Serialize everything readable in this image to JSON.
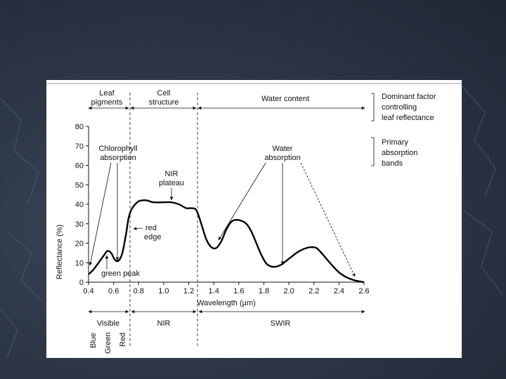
{
  "chart_data": {
    "type": "line",
    "xlabel": "Wavelength (µm)",
    "ylabel": "Reflectance (%)",
    "xlim": [
      0.4,
      2.6
    ],
    "ylim": [
      0,
      80
    ],
    "xticks": [
      "0.4",
      "0.6",
      "0.8",
      "1.0",
      "1.2",
      "1.4",
      "1.6",
      "1.8",
      "2.0",
      "2.2",
      "2.4",
      "2.6"
    ],
    "yticks": [
      "0",
      "10",
      "20",
      "30",
      "40",
      "50",
      "60",
      "70",
      "80"
    ],
    "grid": false,
    "series": [
      {
        "x": [
          0.4,
          0.44,
          0.48,
          0.52,
          0.55,
          0.58,
          0.61,
          0.64,
          0.67,
          0.7,
          0.72,
          0.74,
          0.76,
          0.8,
          0.86,
          0.92,
          1.0,
          1.06,
          1.12,
          1.18,
          1.22,
          1.26,
          1.3,
          1.34,
          1.38,
          1.42,
          1.46,
          1.5,
          1.54,
          1.58,
          1.62,
          1.66,
          1.7,
          1.74,
          1.78,
          1.82,
          1.86,
          1.9,
          1.94,
          1.98,
          2.02,
          2.06,
          2.1,
          2.14,
          2.18,
          2.22,
          2.26,
          2.3,
          2.34,
          2.4,
          2.46,
          2.52,
          2.58,
          2.6
        ],
        "y": [
          4,
          6.5,
          10,
          13.5,
          16,
          15,
          11.5,
          11,
          15,
          25,
          33,
          37,
          39,
          41.5,
          42,
          41,
          41,
          41,
          40,
          38,
          38,
          37,
          30,
          22,
          18,
          17.5,
          21,
          27,
          31,
          32,
          31.5,
          30,
          26,
          20,
          14,
          9.5,
          8,
          8,
          9,
          11,
          13,
          15,
          16.5,
          17.5,
          18,
          17.5,
          15,
          12,
          9,
          5,
          2.5,
          1,
          0.2,
          0
        ]
      }
    ],
    "top_labels": {
      "leaf_pigments": [
        "Leaf",
        "pigments"
      ],
      "cell_structure": [
        "Cell",
        "structure"
      ],
      "water_content": "Water content",
      "dominant_factor": [
        "Dominant factor",
        "controlling",
        "leaf reflectance"
      ],
      "primary_absorption": [
        "Primary",
        "absorption",
        "bands"
      ]
    },
    "annotations": {
      "chlorophyll": [
        "Chlorophyll",
        "absorption"
      ],
      "nir_plateau": [
        "NIR",
        "plateau"
      ],
      "red_edge": [
        "red",
        "edge"
      ],
      "water_absorption": [
        "Water",
        "absorption"
      ],
      "green_peak": "green peak"
    },
    "bottom_labels": {
      "visible": "Visible",
      "nir": "NIR",
      "swir": "SWIR",
      "colors": [
        "Blue",
        "Green",
        "Red"
      ]
    }
  }
}
